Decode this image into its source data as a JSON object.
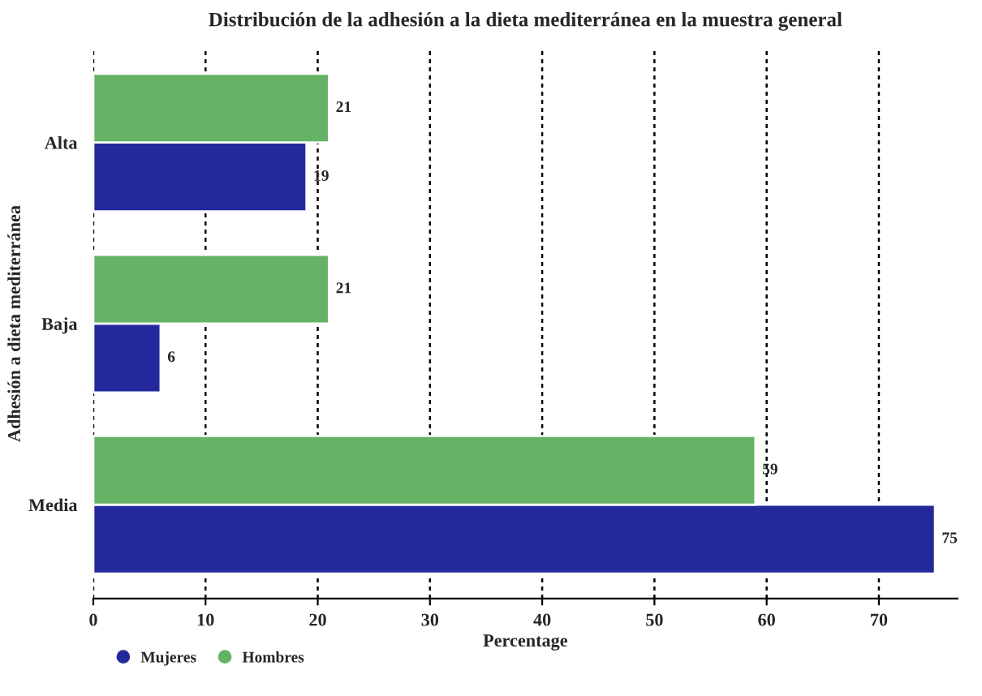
{
  "chart_data": {
    "type": "bar",
    "orientation": "horizontal",
    "title": "Distribución de la adhesión a la dieta mediterránea en la muestra general",
    "xlabel": "Percentage",
    "ylabel": "Adhesión a dieta mediterránea",
    "categories": [
      "Alta",
      "Baja",
      "Media"
    ],
    "series": [
      {
        "name": "Mujeres",
        "color": "#23299b",
        "values": [
          19,
          6,
          75
        ]
      },
      {
        "name": "Hombres",
        "color": "#66b266",
        "values": [
          21,
          21,
          59
        ]
      }
    ],
    "xlim": [
      0,
      77
    ],
    "xticks": [
      0,
      10,
      20,
      30,
      40,
      50,
      60,
      70
    ],
    "grid": "x",
    "data_labels": true,
    "legend": "bottom left"
  }
}
